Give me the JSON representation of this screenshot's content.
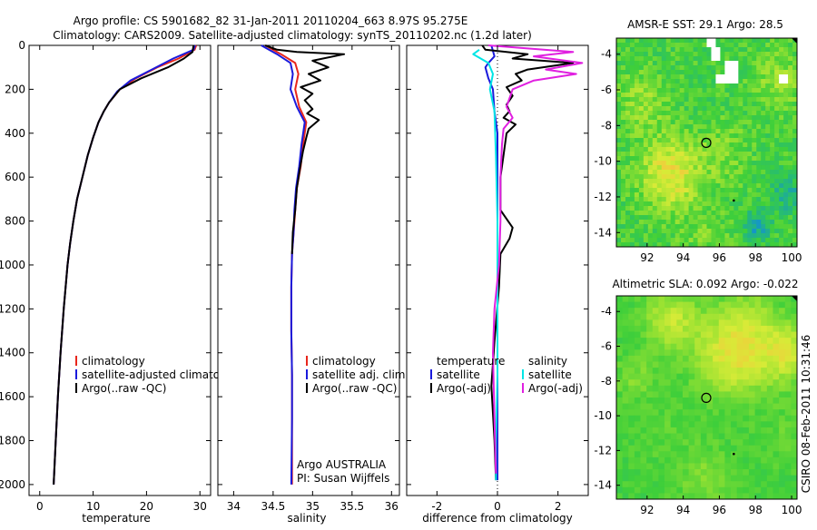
{
  "title": {
    "line1": "Argo profile: CS 5901682_82 31-Jan-2011 20110204_663 8.97S 95.275E",
    "line2": "Climatology: CARS2009. Satellite-adjusted climatology: synTS_20110202.nc (1.2d later)"
  },
  "side_label": "CSIRO 08-Feb-2011 10:31:46",
  "colors": {
    "climatology": "#e8261c",
    "satellite": "#1a1adc",
    "argo": "#000000",
    "satellite_diff": "#00e5e5",
    "argo_diff": "#e020e0",
    "map_base": "#3fcf3a"
  },
  "chart_data": [
    {
      "id": "temperature",
      "type": "line",
      "xlabel": "temperature",
      "xlim": [
        -2,
        32
      ],
      "ylim": [
        2050,
        0
      ],
      "xticks": [
        "0",
        "10",
        "20",
        "30"
      ],
      "yticks": [
        "0",
        "200",
        "400",
        "600",
        "800",
        "1000",
        "1200",
        "1400",
        "1600",
        "1800",
        "2000"
      ],
      "legend": [
        "climatology",
        "satellite-adjusted climatology",
        "Argo(..raw -QC)"
      ],
      "series": [
        {
          "name": "climatology",
          "color": "#e8261c",
          "points": [
            [
              29.3,
              0
            ],
            [
              29,
              20
            ],
            [
              26,
              60
            ],
            [
              22,
              100
            ],
            [
              18,
              150
            ],
            [
              15,
              200
            ],
            [
              13,
              260
            ],
            [
              12,
              300
            ],
            [
              11,
              350
            ],
            [
              10,
              420
            ],
            [
              9,
              500
            ],
            [
              8,
              600
            ],
            [
              7,
              700
            ],
            [
              6.3,
              800
            ],
            [
              5.7,
              900
            ],
            [
              5.2,
              1000
            ],
            [
              4.5,
              1200
            ],
            [
              3.9,
              1400
            ],
            [
              3.4,
              1600
            ],
            [
              3,
              1800
            ],
            [
              2.6,
              2000
            ]
          ]
        },
        {
          "name": "satellite",
          "color": "#1a1adc",
          "points": [
            [
              29.1,
              0
            ],
            [
              28.8,
              20
            ],
            [
              25,
              60
            ],
            [
              21,
              110
            ],
            [
              17,
              160
            ],
            [
              14.5,
              210
            ],
            [
              13,
              260
            ],
            [
              12,
              300
            ],
            [
              11,
              350
            ],
            [
              10,
              420
            ],
            [
              9,
              500
            ],
            [
              8,
              600
            ],
            [
              7,
              700
            ],
            [
              6.3,
              800
            ],
            [
              5.7,
              900
            ],
            [
              5.2,
              1000
            ],
            [
              4.5,
              1200
            ],
            [
              3.9,
              1400
            ],
            [
              3.4,
              1600
            ],
            [
              3,
              1800
            ],
            [
              2.6,
              2000
            ]
          ]
        },
        {
          "name": "argo",
          "color": "#000000",
          "points": [
            [
              28.8,
              0
            ],
            [
              28.6,
              30
            ],
            [
              27,
              60
            ],
            [
              24,
              100
            ],
            [
              19,
              150
            ],
            [
              15,
              200
            ],
            [
              13,
              260
            ],
            [
              12,
              300
            ],
            [
              11,
              350
            ],
            [
              10,
              420
            ],
            [
              9,
              500
            ],
            [
              8,
              600
            ],
            [
              7,
              700
            ],
            [
              6.3,
              800
            ],
            [
              5.7,
              900
            ],
            [
              5.2,
              1000
            ],
            [
              4.5,
              1200
            ],
            [
              3.9,
              1400
            ],
            [
              3.4,
              1600
            ],
            [
              3,
              1800
            ],
            [
              2.6,
              2000
            ]
          ]
        }
      ]
    },
    {
      "id": "salinity",
      "type": "line",
      "xlabel": "salinity",
      "xlim": [
        33.8,
        36.1
      ],
      "ylim": [
        2050,
        0
      ],
      "xticks": [
        "34",
        "34.5",
        "35",
        "35.5",
        "36"
      ],
      "legend": [
        "climatology",
        "satellite adj. clim.",
        "Argo(..raw -QC)"
      ],
      "annotation": [
        "Argo AUSTRALIA",
        "PI: Susan Wijffels"
      ],
      "series": [
        {
          "name": "climatology",
          "color": "#e8261c",
          "points": [
            [
              34.4,
              0
            ],
            [
              34.6,
              40
            ],
            [
              34.78,
              80
            ],
            [
              34.82,
              130
            ],
            [
              34.78,
              200
            ],
            [
              34.83,
              280
            ],
            [
              34.92,
              350
            ],
            [
              34.88,
              450
            ],
            [
              34.85,
              550
            ],
            [
              34.8,
              650
            ],
            [
              34.78,
              750
            ],
            [
              34.76,
              850
            ],
            [
              34.74,
              950
            ],
            [
              34.73,
              1100
            ],
            [
              34.73,
              1300
            ],
            [
              34.74,
              1500
            ],
            [
              34.74,
              1700
            ],
            [
              34.74,
              2000
            ]
          ]
        },
        {
          "name": "satellite",
          "color": "#1a1adc",
          "points": [
            [
              34.35,
              0
            ],
            [
              34.55,
              40
            ],
            [
              34.72,
              80
            ],
            [
              34.75,
              130
            ],
            [
              34.72,
              200
            ],
            [
              34.8,
              280
            ],
            [
              34.9,
              350
            ],
            [
              34.86,
              450
            ],
            [
              34.83,
              550
            ],
            [
              34.79,
              650
            ],
            [
              34.77,
              750
            ],
            [
              34.76,
              850
            ],
            [
              34.74,
              950
            ],
            [
              34.73,
              1100
            ],
            [
              34.73,
              1300
            ],
            [
              34.74,
              1500
            ],
            [
              34.74,
              1700
            ],
            [
              34.73,
              2000
            ]
          ]
        },
        {
          "name": "argo",
          "color": "#000000",
          "points": [
            [
              34.4,
              0
            ],
            [
              34.55,
              20
            ],
            [
              34.8,
              30
            ],
            [
              35.4,
              40
            ],
            [
              35.0,
              70
            ],
            [
              35.2,
              100
            ],
            [
              34.95,
              130
            ],
            [
              35.1,
              160
            ],
            [
              34.85,
              190
            ],
            [
              35.0,
              220
            ],
            [
              34.9,
              250
            ],
            [
              35.0,
              290
            ],
            [
              34.93,
              310
            ],
            [
              35.08,
              340
            ],
            [
              34.95,
              380
            ],
            [
              34.92,
              420
            ],
            [
              34.88,
              480
            ],
            [
              34.84,
              560
            ],
            [
              34.8,
              650
            ],
            [
              34.78,
              750
            ],
            [
              34.75,
              850
            ],
            [
              34.74,
              950
            ]
          ]
        }
      ]
    },
    {
      "id": "difference",
      "type": "line",
      "xlabel": "difference from climatology",
      "xlim": [
        -3,
        3
      ],
      "ylim": [
        2050,
        0
      ],
      "xticks": [
        "-2",
        "0",
        "2"
      ],
      "legend_left_title": "temperature",
      "legend_right_title": "salinity",
      "legend_left": [
        "satellite",
        "Argo(-adj)"
      ],
      "legend_right": [
        "satellite",
        "Argo(-adj)"
      ],
      "series": [
        {
          "name": "temp_satellite",
          "color": "#1a1adc",
          "points": [
            [
              -0.2,
              0
            ],
            [
              -0.1,
              50
            ],
            [
              -0.3,
              80
            ],
            [
              -0.4,
              100
            ],
            [
              -0.3,
              150
            ],
            [
              -0.15,
              200
            ],
            [
              -0.1,
              300
            ],
            [
              0,
              400
            ],
            [
              0,
              600
            ],
            [
              0,
              800
            ],
            [
              0,
              1000
            ],
            [
              0,
              1200
            ],
            [
              0,
              1500
            ],
            [
              0,
              1800
            ],
            [
              0,
              1980
            ]
          ]
        },
        {
          "name": "temp_argo",
          "color": "#000000",
          "points": [
            [
              -0.5,
              0
            ],
            [
              -0.4,
              20
            ],
            [
              1,
              40
            ],
            [
              0.5,
              60
            ],
            [
              2.5,
              80
            ],
            [
              1,
              110
            ],
            [
              0.6,
              130
            ],
            [
              0.8,
              160
            ],
            [
              0.3,
              190
            ],
            [
              0.5,
              230
            ],
            [
              0.3,
              270
            ],
            [
              0.4,
              300
            ],
            [
              0.2,
              330
            ],
            [
              0.6,
              360
            ],
            [
              0.3,
              400
            ],
            [
              0.2,
              500
            ],
            [
              0.1,
              600
            ],
            [
              0.1,
              750
            ],
            [
              0.5,
              830
            ],
            [
              0.4,
              880
            ],
            [
              0.1,
              950
            ],
            [
              0.05,
              1100
            ],
            [
              -0.1,
              1350
            ],
            [
              -0.2,
              1550
            ],
            [
              -0.1,
              1800
            ],
            [
              -0.05,
              1980
            ]
          ]
        },
        {
          "name": "sal_satellite",
          "color": "#00e5e5",
          "points": [
            [
              -0.6,
              20
            ],
            [
              -0.8,
              40
            ],
            [
              -0.3,
              80
            ],
            [
              -0.15,
              130
            ],
            [
              -0.25,
              200
            ],
            [
              -0.1,
              300
            ],
            [
              -0.05,
              500
            ],
            [
              0,
              800
            ],
            [
              0,
              1200
            ],
            [
              0,
              1500
            ],
            [
              -0.05,
              1800
            ],
            [
              -0.05,
              1980
            ]
          ]
        },
        {
          "name": "sal_argo",
          "color": "#e020e0",
          "points": [
            [
              -0.3,
              0
            ],
            [
              2.5,
              30
            ],
            [
              1.2,
              50
            ],
            [
              2.8,
              80
            ],
            [
              1.6,
              110
            ],
            [
              2.6,
              130
            ],
            [
              1.2,
              160
            ],
            [
              0.5,
              200
            ],
            [
              0.3,
              280
            ],
            [
              0.5,
              330
            ],
            [
              0.2,
              380
            ],
            [
              0.15,
              450
            ],
            [
              0.1,
              600
            ],
            [
              0.1,
              800
            ],
            [
              0.05,
              1000
            ],
            [
              -0.1,
              1200
            ],
            [
              -0.15,
              1400
            ],
            [
              -0.1,
              1700
            ],
            [
              -0.05,
              1950
            ]
          ]
        }
      ]
    },
    {
      "id": "sst_map",
      "type": "heatmap",
      "title": "AMSR-E SST: 29.1 Argo: 28.5",
      "xticks": [
        "92",
        "94",
        "96",
        "98",
        "100"
      ],
      "yticks": [
        "-4",
        "-6",
        "-8",
        "-10",
        "-12",
        "-14"
      ],
      "xlim": [
        90.3,
        100.3
      ],
      "ylim": [
        -3.1,
        -14.8
      ]
    },
    {
      "id": "sla_map",
      "type": "heatmap",
      "title": "Altimetric SLA: 0.092 Argo: -0.022",
      "xticks": [
        "92",
        "94",
        "96",
        "98",
        "100"
      ],
      "yticks": [
        "-4",
        "-6",
        "-8",
        "-10",
        "-12",
        "-14"
      ],
      "xlim": [
        90.3,
        100.3
      ],
      "ylim": [
        -3.1,
        -14.8
      ]
    }
  ]
}
